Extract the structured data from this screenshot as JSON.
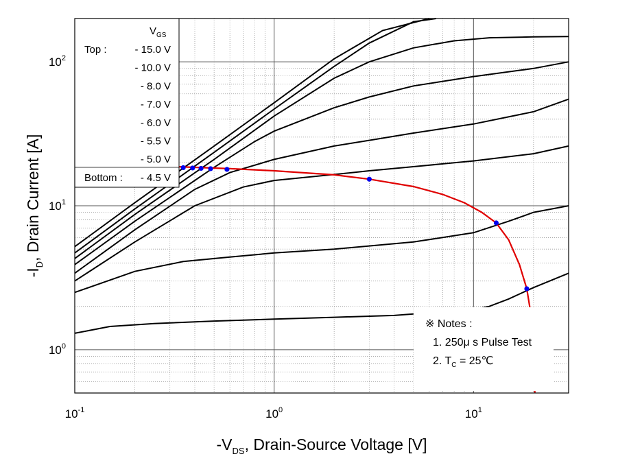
{
  "chart_data": {
    "type": "line",
    "xlabel": {
      "main": "-V",
      "sub": "DS",
      "rest": ", Drain-Source Voltage [V]"
    },
    "ylabel": {
      "main": "-I",
      "sub": "D",
      "rest": ", Drain Current [A]"
    },
    "x_scale": "log",
    "y_scale": "log",
    "xlim": [
      0.1,
      30
    ],
    "ylim": [
      0.5,
      200
    ],
    "x_ticks": [
      {
        "base": "10",
        "exp": "-1",
        "value": 0.1
      },
      {
        "base": "10",
        "exp": "0",
        "value": 1
      },
      {
        "base": "10",
        "exp": "1",
        "value": 10
      }
    ],
    "y_ticks": [
      {
        "base": "10",
        "exp": "0",
        "value": 1
      },
      {
        "base": "10",
        "exp": "1",
        "value": 10
      },
      {
        "base": "10",
        "exp": "2",
        "value": 100
      }
    ],
    "grid": true,
    "legend": {
      "header_main": "V",
      "header_sub": "GS",
      "top_label": "Top :",
      "bottom_label": "Bottom :",
      "entries": [
        "- 15.0 V",
        "- 10.0 V",
        "- 8.0 V",
        "- 7.0 V",
        "- 6.0 V",
        "- 5.5 V",
        "- 5.0 V",
        "- 4.5 V"
      ],
      "placement": "top-left"
    },
    "notes": {
      "title": "※ Notes :",
      "line1": "1. 250μ s Pulse Test",
      "line2_pre": "2. T",
      "line2_sub": "C",
      "line2_post": " = 25℃"
    },
    "series": [
      {
        "vgs": -15.0,
        "points": [
          [
            0.1,
            5.2
          ],
          [
            0.2,
            10.5
          ],
          [
            0.5,
            26
          ],
          [
            1,
            52
          ],
          [
            2,
            105
          ],
          [
            3.5,
            165
          ],
          [
            6,
            200
          ]
        ]
      },
      {
        "vgs": -10.0,
        "points": [
          [
            0.1,
            4.7
          ],
          [
            0.2,
            9.5
          ],
          [
            0.5,
            23.5
          ],
          [
            1,
            47
          ],
          [
            2,
            93
          ],
          [
            3,
            135
          ],
          [
            5,
            190
          ],
          [
            6.5,
            200
          ]
        ]
      },
      {
        "vgs": -8.0,
        "points": [
          [
            0.1,
            4.3
          ],
          [
            0.2,
            8.7
          ],
          [
            0.5,
            21
          ],
          [
            1,
            42
          ],
          [
            2,
            77
          ],
          [
            3,
            100
          ],
          [
            5,
            125
          ],
          [
            8,
            140
          ],
          [
            12,
            147
          ],
          [
            20,
            149
          ],
          [
            30,
            150
          ]
        ]
      },
      {
        "vgs": -7.0,
        "points": [
          [
            0.1,
            3.9
          ],
          [
            0.2,
            7.8
          ],
          [
            0.5,
            18.5
          ],
          [
            0.8,
            28
          ],
          [
            1,
            33
          ],
          [
            2,
            48
          ],
          [
            3,
            57
          ],
          [
            5,
            68
          ],
          [
            10,
            79
          ],
          [
            20,
            90
          ],
          [
            30,
            100
          ]
        ]
      },
      {
        "vgs": -6.0,
        "points": [
          [
            0.1,
            3.4
          ],
          [
            0.2,
            6.8
          ],
          [
            0.4,
            13
          ],
          [
            0.6,
            17
          ],
          [
            1,
            21
          ],
          [
            2,
            26
          ],
          [
            3,
            28.5
          ],
          [
            5,
            32
          ],
          [
            10,
            37
          ],
          [
            20,
            45
          ],
          [
            30,
            55
          ]
        ]
      },
      {
        "vgs": -5.5,
        "points": [
          [
            0.1,
            3.0
          ],
          [
            0.2,
            5.6
          ],
          [
            0.4,
            10
          ],
          [
            0.7,
            13.5
          ],
          [
            1,
            15
          ],
          [
            2,
            16.5
          ],
          [
            3,
            17.5
          ],
          [
            5,
            18.7
          ],
          [
            10,
            20.5
          ],
          [
            20,
            23
          ],
          [
            30,
            26
          ]
        ]
      },
      {
        "vgs": -5.0,
        "points": [
          [
            0.1,
            2.5
          ],
          [
            0.2,
            3.5
          ],
          [
            0.35,
            4.1
          ],
          [
            0.6,
            4.4
          ],
          [
            1,
            4.7
          ],
          [
            2,
            5.0
          ],
          [
            5,
            5.6
          ],
          [
            10,
            6.5
          ],
          [
            15,
            7.8
          ],
          [
            20,
            9
          ],
          [
            30,
            10
          ]
        ]
      },
      {
        "vgs": -4.5,
        "points": [
          [
            0.1,
            1.3
          ],
          [
            0.15,
            1.45
          ],
          [
            0.25,
            1.52
          ],
          [
            0.5,
            1.58
          ],
          [
            1,
            1.63
          ],
          [
            2,
            1.68
          ],
          [
            4,
            1.73
          ],
          [
            5,
            1.77
          ]
        ],
        "points2": [
          [
            9,
            1.85
          ],
          [
            12,
            2.0
          ],
          [
            15,
            2.25
          ],
          [
            20,
            2.7
          ],
          [
            30,
            3.4
          ]
        ]
      }
    ],
    "boundary_curve": {
      "points": [
        [
          0.1,
          20
        ],
        [
          0.2,
          19.2
        ],
        [
          0.35,
          18.6
        ],
        [
          0.6,
          18.1
        ],
        [
          1,
          17.5
        ],
        [
          2,
          16.4
        ],
        [
          3,
          15.3
        ],
        [
          5,
          13.6
        ],
        [
          7,
          12
        ],
        [
          9,
          10.5
        ],
        [
          11,
          9
        ],
        [
          13,
          7.6
        ],
        [
          15,
          5.8
        ],
        [
          17,
          3.9
        ],
        [
          18.5,
          2.65
        ],
        [
          19.5,
          1.7
        ],
        [
          20,
          1.1
        ],
        [
          20.3,
          0.5
        ]
      ],
      "markers": [
        [
          0.35,
          18.4
        ],
        [
          0.39,
          18.3
        ],
        [
          0.43,
          18.2
        ],
        [
          0.48,
          18.1
        ],
        [
          0.58,
          17.9
        ],
        [
          3.0,
          15.3
        ],
        [
          13,
          7.6
        ],
        [
          18.5,
          2.65
        ]
      ]
    }
  }
}
